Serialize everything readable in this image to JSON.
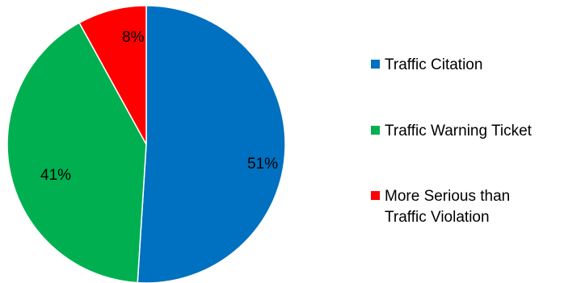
{
  "chart_data": {
    "type": "pie",
    "title": "",
    "legend_position": "right",
    "categories": [
      "Traffic Citation",
      "Traffic Warning Ticket",
      "More Serious than Traffic Violation"
    ],
    "values": [
      51,
      41,
      8
    ],
    "labels": [
      "51%",
      "41%",
      "8%"
    ],
    "colors": [
      "#0070C0",
      "#00B050",
      "#FF0000"
    ],
    "start_angle_deg": 0,
    "direction": "clockwise"
  }
}
